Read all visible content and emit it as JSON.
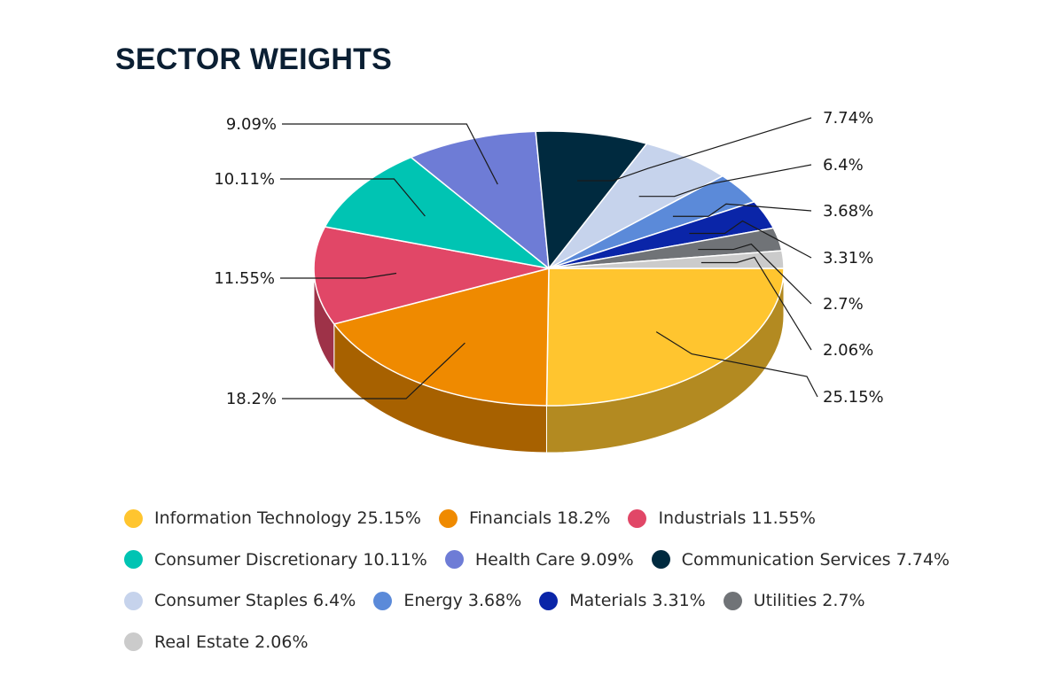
{
  "title": "SECTOR WEIGHTS",
  "chart_data": {
    "type": "pie",
    "title": "SECTOR WEIGHTS",
    "legend_position": "bottom",
    "slices": [
      {
        "name": "Information Technology",
        "value": 25.15,
        "label": "25.15%",
        "legend": "Information Technology 25.15%",
        "color": "#ffc52f"
      },
      {
        "name": "Financials",
        "value": 18.2,
        "label": "18.2%",
        "legend": "Financials 18.2%",
        "color": "#ef8a00"
      },
      {
        "name": "Industrials",
        "value": 11.55,
        "label": "11.55%",
        "legend": "Industrials 11.55%",
        "color": "#e14767"
      },
      {
        "name": "Consumer Discretionary",
        "value": 10.11,
        "label": "10.11%",
        "legend": "Consumer Discretionary 10.11%",
        "color": "#00c4b3"
      },
      {
        "name": "Health Care",
        "value": 9.09,
        "label": "9.09%",
        "legend": "Health Care 9.09%",
        "color": "#6e7cd6"
      },
      {
        "name": "Communication Services",
        "value": 7.74,
        "label": "7.74%",
        "legend": "Communication Services 7.74%",
        "color": "#002a3f"
      },
      {
        "name": "Consumer Staples",
        "value": 6.4,
        "label": "6.4%",
        "legend": "Consumer Staples 6.4%",
        "color": "#c6d3ec"
      },
      {
        "name": "Energy",
        "value": 3.68,
        "label": "3.68%",
        "legend": "Energy 3.68%",
        "color": "#5b8ad9"
      },
      {
        "name": "Materials",
        "value": 3.31,
        "label": "3.31%",
        "legend": "Materials 3.31%",
        "color": "#0a25a8"
      },
      {
        "name": "Utilities",
        "value": 2.7,
        "label": "2.7%",
        "legend": "Utilities 2.7%",
        "color": "#707377"
      },
      {
        "name": "Real Estate",
        "value": 2.06,
        "label": "2.06%",
        "legend": "Real Estate 2.06%",
        "color": "#cbcbcb"
      }
    ]
  }
}
